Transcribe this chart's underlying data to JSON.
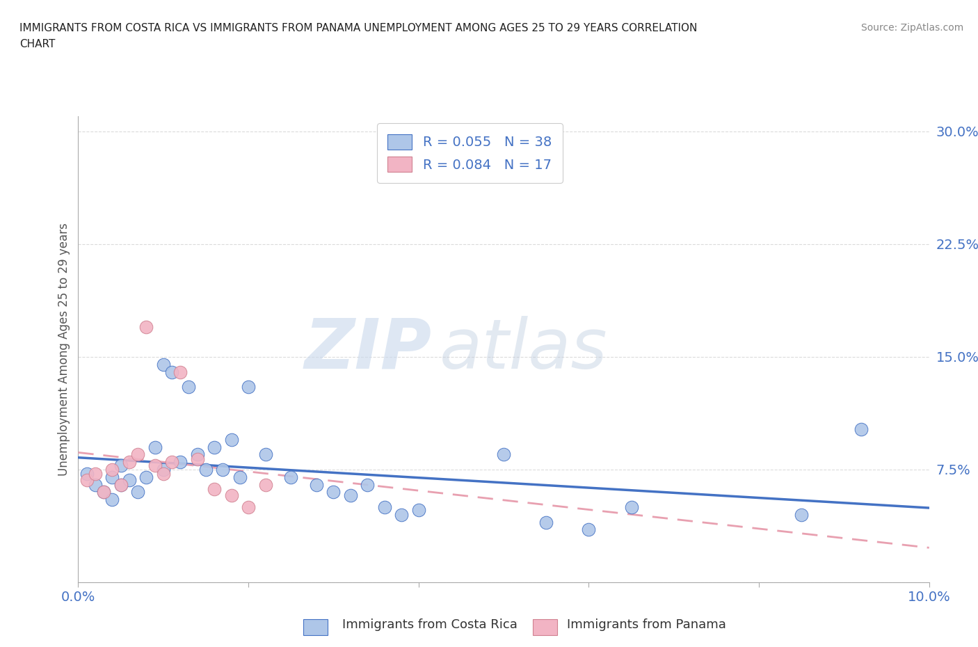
{
  "title_line1": "IMMIGRANTS FROM COSTA RICA VS IMMIGRANTS FROM PANAMA UNEMPLOYMENT AMONG AGES 25 TO 29 YEARS CORRELATION",
  "title_line2": "CHART",
  "source": "Source: ZipAtlas.com",
  "ylabel": "Unemployment Among Ages 25 to 29 years",
  "xlim": [
    0.0,
    0.1
  ],
  "ylim": [
    0.0,
    0.31
  ],
  "xticks": [
    0.0,
    0.02,
    0.04,
    0.06,
    0.08,
    0.1
  ],
  "xticklabels": [
    "0.0%",
    "",
    "",
    "",
    "",
    "10.0%"
  ],
  "yticks": [
    0.0,
    0.075,
    0.15,
    0.225,
    0.3
  ],
  "yticklabels": [
    "",
    "7.5%",
    "15.0%",
    "22.5%",
    "30.0%"
  ],
  "R_cr": 0.055,
  "N_cr": 38,
  "R_pan": 0.084,
  "N_pan": 17,
  "costa_rica_color": "#aec6e8",
  "panama_color": "#f2b4c4",
  "trendline_cr_color": "#4472c4",
  "trendline_pan_color": "#e8a0b0",
  "legend_r_color": "#4472c4",
  "costa_rica_x": [
    0.001,
    0.002,
    0.003,
    0.004,
    0.004,
    0.005,
    0.005,
    0.006,
    0.007,
    0.008,
    0.009,
    0.01,
    0.01,
    0.011,
    0.012,
    0.013,
    0.014,
    0.015,
    0.016,
    0.017,
    0.018,
    0.019,
    0.02,
    0.022,
    0.025,
    0.028,
    0.03,
    0.032,
    0.034,
    0.036,
    0.038,
    0.04,
    0.05,
    0.055,
    0.06,
    0.065,
    0.085,
    0.092
  ],
  "costa_rica_y": [
    0.072,
    0.065,
    0.06,
    0.07,
    0.055,
    0.078,
    0.065,
    0.068,
    0.06,
    0.07,
    0.09,
    0.145,
    0.075,
    0.14,
    0.08,
    0.13,
    0.085,
    0.075,
    0.09,
    0.075,
    0.095,
    0.07,
    0.13,
    0.085,
    0.07,
    0.065,
    0.06,
    0.058,
    0.065,
    0.05,
    0.045,
    0.048,
    0.085,
    0.04,
    0.035,
    0.05,
    0.045,
    0.102
  ],
  "panama_x": [
    0.001,
    0.002,
    0.003,
    0.004,
    0.005,
    0.006,
    0.007,
    0.008,
    0.009,
    0.01,
    0.011,
    0.012,
    0.014,
    0.016,
    0.018,
    0.02,
    0.022
  ],
  "panama_y": [
    0.068,
    0.072,
    0.06,
    0.075,
    0.065,
    0.08,
    0.085,
    0.17,
    0.078,
    0.072,
    0.08,
    0.14,
    0.082,
    0.062,
    0.058,
    0.05,
    0.065
  ],
  "background_color": "#ffffff",
  "plot_bg_color": "#ffffff",
  "grid_color": "#cccccc",
  "watermark_color": "#d0dff0"
}
